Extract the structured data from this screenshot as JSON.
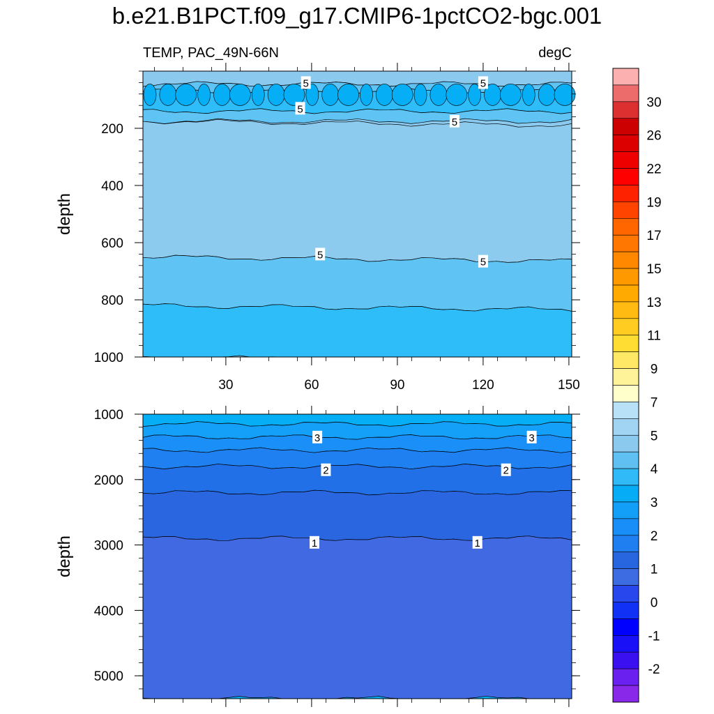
{
  "figure": {
    "title": "b.e21.B1PCT.f09_g17.CMIP6-1pctCO2-bgc.001",
    "subtitle_left": "TEMP, PAC_49N-66N",
    "subtitle_right": "degC"
  },
  "chart_data": [
    {
      "type": "heatmap",
      "panel": "upper",
      "ylabel": "depth",
      "xlabel": "",
      "xlim": [
        1,
        151
      ],
      "ylim": [
        1000,
        0
      ],
      "x_ticks": [
        30,
        60,
        90,
        120,
        150
      ],
      "y_ticks": [
        200,
        400,
        600,
        800,
        1000
      ],
      "contour_levels": [
        0.5,
        1,
        1.5,
        2,
        2.5,
        3,
        3.5,
        4,
        4.5,
        5,
        5.5,
        6,
        6.5,
        7
      ],
      "depth_bands": [
        {
          "from": 0,
          "to": 45,
          "value": 5.8
        },
        {
          "from": 45,
          "to": 70,
          "value": 4.8
        },
        {
          "from": 70,
          "to": 140,
          "value": 4.2
        },
        {
          "from": 140,
          "to": 175,
          "value": 4.8
        },
        {
          "from": 175,
          "to": 650,
          "value": 5.3
        },
        {
          "from": 650,
          "to": 820,
          "value": 4.8
        },
        {
          "from": 820,
          "to": 1000,
          "value": 4.3
        }
      ],
      "contour_labels": [
        {
          "text": "5",
          "x": 58,
          "depth": 40
        },
        {
          "text": "5",
          "x": 120,
          "depth": 40
        },
        {
          "text": "5",
          "x": 56,
          "depth": 130
        },
        {
          "text": "5",
          "x": 110,
          "depth": 175
        },
        {
          "text": "5",
          "x": 63,
          "depth": 640
        },
        {
          "text": "5",
          "x": 120,
          "depth": 665
        }
      ]
    },
    {
      "type": "heatmap",
      "panel": "lower",
      "ylabel": "depth",
      "xlabel": "",
      "xlim": [
        1,
        151
      ],
      "ylim": [
        5350,
        1000
      ],
      "x_ticks": [
        30,
        60,
        90,
        120,
        150
      ],
      "y_ticks": [
        1000,
        2000,
        3000,
        4000,
        5000
      ],
      "depth_bands": [
        {
          "from": 1000,
          "to": 1150,
          "value": 3.8
        },
        {
          "from": 1150,
          "to": 1350,
          "value": 3.3
        },
        {
          "from": 1350,
          "to": 1550,
          "value": 2.8
        },
        {
          "from": 1550,
          "to": 1800,
          "value": 2.3
        },
        {
          "from": 1800,
          "to": 2200,
          "value": 1.8
        },
        {
          "from": 2200,
          "to": 2900,
          "value": 1.3
        },
        {
          "from": 2900,
          "to": 5350,
          "value": 0.8
        }
      ],
      "contour_labels": [
        {
          "text": "3",
          "x": 62,
          "depth": 1350
        },
        {
          "text": "3",
          "x": 137,
          "depth": 1350
        },
        {
          "text": "2",
          "x": 65,
          "depth": 1850
        },
        {
          "text": "2",
          "x": 128,
          "depth": 1850
        },
        {
          "text": "1",
          "x": 61,
          "depth": 2960
        },
        {
          "text": "1",
          "x": 118,
          "depth": 2960
        }
      ]
    }
  ],
  "colorbar": {
    "labels": [
      "30",
      "26",
      "22",
      "19",
      "17",
      "15",
      "13",
      "11",
      "9",
      "7",
      "5",
      "4",
      "3",
      "2",
      "1",
      "0",
      "-1",
      "-2"
    ],
    "colors": [
      "#fcb0b0",
      "#ec6c6c",
      "#dc3030",
      "#cc0000",
      "#dd0000",
      "#ee0000",
      "#ff0000",
      "#ff2200",
      "#ff4400",
      "#ff6600",
      "#ff7700",
      "#ff8800",
      "#ff9900",
      "#ffaa00",
      "#ffbb11",
      "#ffcc22",
      "#ffdd33",
      "#ffe866",
      "#fff399",
      "#ffffcc",
      "#b8e0f6",
      "#a0d4f2",
      "#8cc9ee",
      "#60c0f2",
      "#30baf8",
      "#06acf6",
      "#139ff8",
      "#1a8ef8",
      "#1f7ef0",
      "#2866e0",
      "#3d6ce2",
      "#2848ee",
      "#1131f5",
      "#0000ff",
      "#1a10f8",
      "#3a10f0",
      "#6a20ee",
      "#8a28ea"
    ]
  }
}
